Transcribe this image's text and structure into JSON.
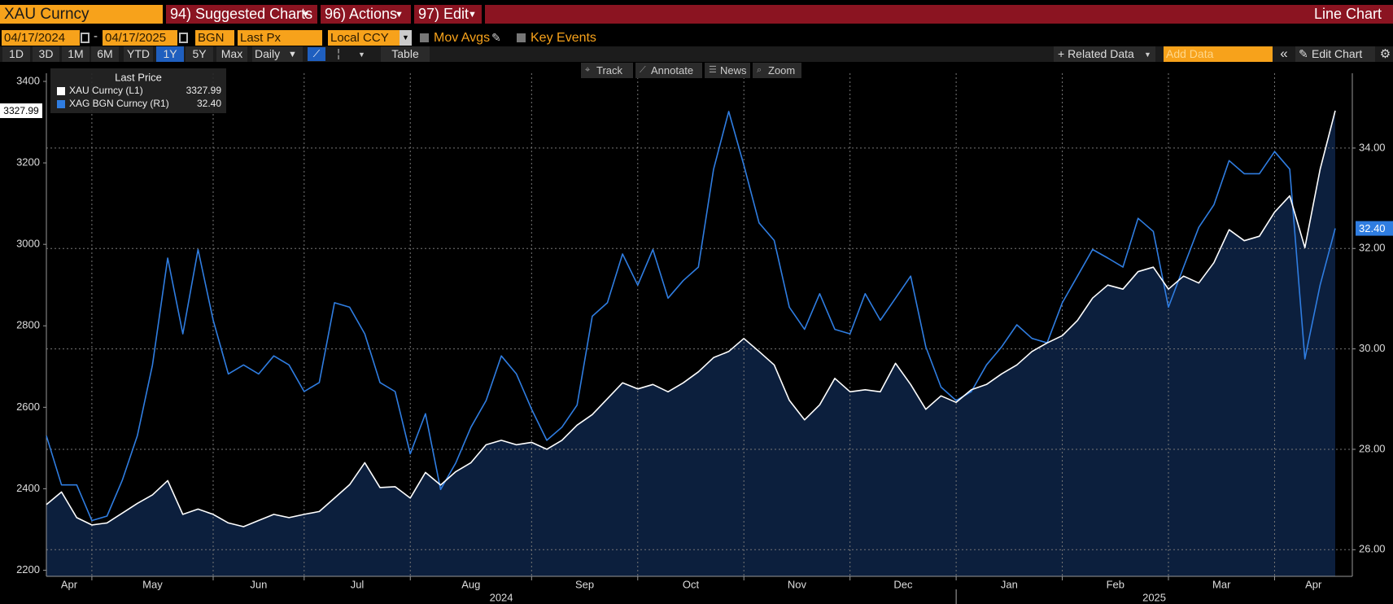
{
  "ui": {
    "security": "XAU Curncy",
    "menus": [
      "94) Suggested Charts",
      "96) Actions",
      "97) Edit"
    ],
    "chart_kind": "Line Chart",
    "date_from": "04/17/2024",
    "date_to": "04/17/2025",
    "source": "BGN",
    "field": "Last Px",
    "currency": "Local CCY",
    "toggles": [
      "Mov Avgs",
      "Key Events"
    ],
    "periods": [
      "1D",
      "3D",
      "1M",
      "6M",
      "YTD",
      "1Y",
      "5Y",
      "Max"
    ],
    "selected_period": "1Y",
    "frequency": "Daily",
    "table": "Table",
    "related_data": "+ Related Data",
    "add_data": "Add Data",
    "edit_chart": "Edit Chart",
    "tools": [
      "Track",
      "Annotate",
      "News",
      "Zoom"
    ]
  },
  "chart_data": {
    "type": "line",
    "legend_title": "Last Price",
    "categories": [
      "Apr",
      null,
      null,
      "May",
      null,
      null,
      null,
      null,
      null,
      null,
      null,
      "Jun",
      null,
      null,
      null,
      null,
      null,
      "Jul",
      null,
      null,
      null,
      null,
      null,
      null,
      "Aug",
      null,
      null,
      null,
      null,
      null,
      null,
      null,
      "Sep",
      null,
      null,
      null,
      null,
      null,
      null,
      "Oct",
      null,
      null,
      null,
      null,
      null,
      null,
      "Nov",
      null,
      null,
      null,
      null,
      null,
      null,
      "Dec",
      null,
      null,
      null,
      null,
      null,
      null,
      "Jan",
      null,
      null,
      null,
      null,
      null,
      null,
      "Feb",
      null,
      null,
      null,
      null,
      null,
      null,
      "Mar",
      null,
      null,
      null,
      null,
      null,
      null,
      "Apr",
      null,
      null,
      null,
      null
    ],
    "x_groups": [
      {
        "label": "2024",
        "count": 60
      },
      {
        "label": "2025",
        "count": 26
      }
    ],
    "series": [
      {
        "name": "XAU Curncy (L1)",
        "color": "#ffffff",
        "fill": "#0c1f3d",
        "axis": "y",
        "legend_value": "3327.99",
        "values": [
          2361,
          2392,
          2329,
          2311,
          2316,
          2340,
          2364,
          2385,
          2420,
          2337,
          2350,
          2337,
          2316,
          2307,
          2322,
          2337,
          2329,
          2337,
          2344,
          2377,
          2410,
          2464,
          2403,
          2405,
          2377,
          2440,
          2409,
          2442,
          2464,
          2508,
          2519,
          2508,
          2514,
          2497,
          2519,
          2556,
          2582,
          2621,
          2660,
          2645,
          2656,
          2638,
          2660,
          2687,
          2722,
          2737,
          2769,
          2737,
          2704,
          2617,
          2569,
          2606,
          2671,
          2638,
          2643,
          2638,
          2708,
          2656,
          2595,
          2628,
          2612,
          2643,
          2656,
          2682,
          2704,
          2737,
          2758,
          2776,
          2813,
          2868,
          2900,
          2890,
          2933,
          2944,
          2890,
          2922,
          2905,
          2955,
          3036,
          3009,
          3020,
          3079,
          3119,
          2992,
          3184,
          3327.99
        ]
      },
      {
        "name": "XAG BGN Curncy (R1)",
        "color": "#2f7de1",
        "axis": "y2",
        "legend_value": "32.40",
        "values": [
          28.27,
          27.29,
          27.29,
          26.58,
          26.67,
          27.38,
          28.27,
          29.68,
          31.81,
          30.3,
          31.98,
          30.57,
          29.5,
          29.68,
          29.5,
          29.86,
          29.68,
          29.15,
          29.33,
          30.92,
          30.83,
          30.3,
          29.33,
          29.15,
          27.91,
          28.71,
          27.2,
          27.73,
          28.44,
          28.97,
          29.86,
          29.5,
          28.8,
          28.18,
          28.44,
          28.88,
          30.65,
          30.92,
          31.89,
          31.27,
          31.98,
          31.01,
          31.36,
          31.63,
          33.58,
          34.73,
          33.66,
          32.51,
          32.16,
          30.83,
          30.39,
          31.1,
          30.39,
          30.3,
          31.1,
          30.57,
          31.01,
          31.45,
          30.04,
          29.24,
          28.97,
          29.15,
          29.68,
          30.04,
          30.48,
          30.21,
          30.12,
          30.92,
          31.45,
          31.98,
          31.81,
          31.63,
          32.6,
          32.34,
          30.83,
          31.63,
          32.42,
          32.87,
          33.75,
          33.49,
          33.49,
          33.93,
          33.58,
          29.8,
          31.27,
          32.4
        ]
      }
    ],
    "ylim": [
      2185,
      3420
    ],
    "yticks": [
      2200,
      2400,
      2600,
      2800,
      3000,
      3200,
      3400
    ],
    "y2lim": [
      25.47,
      35.49
    ],
    "y2ticks": [
      {
        "value": 26,
        "label": "26.00"
      },
      {
        "value": 28,
        "label": "28.00"
      },
      {
        "value": 30,
        "label": "30.00"
      },
      {
        "value": 32,
        "label": "32.00"
      },
      {
        "value": 34,
        "label": "34.00"
      }
    ],
    "grid": "y2"
  }
}
